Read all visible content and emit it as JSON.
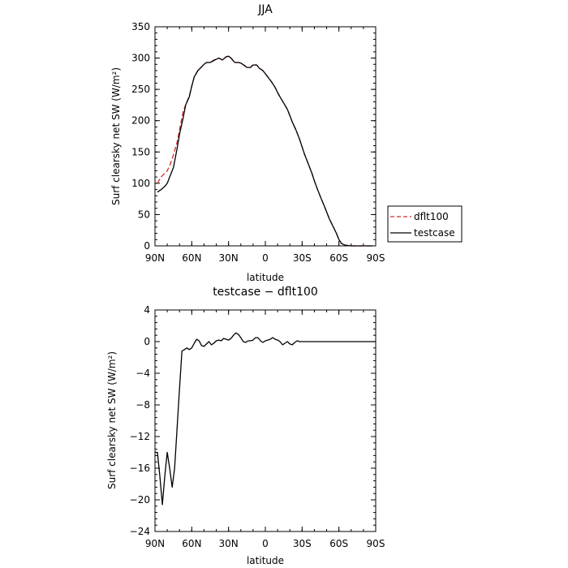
{
  "chart_data": [
    {
      "type": "line",
      "title": "JJA",
      "xlabel": "latitude",
      "ylabel": "Surf clearsky net SW (W/m²)",
      "xlim": [
        90,
        -90
      ],
      "ylim": [
        0,
        350
      ],
      "x_ticks": [
        90,
        60,
        30,
        0,
        -30,
        -60,
        -90
      ],
      "x_tick_labels": [
        "90N",
        "60N",
        "30N",
        "0",
        "30S",
        "60S",
        "90S"
      ],
      "y_ticks": [
        0,
        50,
        100,
        150,
        200,
        250,
        300,
        350
      ],
      "y_tick_labels": [
        "0",
        "50",
        "100",
        "150",
        "200",
        "250",
        "300",
        "350"
      ],
      "legend": {
        "placement": "right-outside",
        "entries": [
          {
            "name": "dflt100",
            "color": "#d62728",
            "dash": "dashed"
          },
          {
            "name": "testcase",
            "color": "#000000",
            "dash": "solid"
          }
        ]
      },
      "series": [
        {
          "name": "dflt100",
          "color": "#d62728",
          "dash": "dashed",
          "x": [
            88,
            85,
            82,
            80,
            78,
            75,
            72,
            70,
            67,
            65,
            62,
            60,
            58,
            55,
            52,
            50,
            48,
            45,
            42,
            40,
            38,
            35,
            32,
            30,
            28,
            25,
            22,
            20,
            17,
            15,
            12,
            10,
            7,
            5,
            2,
            0,
            -2,
            -5,
            -8,
            -10,
            -12,
            -15,
            -18,
            -20,
            -22,
            -25,
            -28,
            -30,
            -32,
            -35,
            -38,
            -40,
            -42,
            -45,
            -48,
            -50,
            -52,
            -55,
            -58,
            -60,
            -62,
            -65,
            -68,
            -70,
            -75,
            -80,
            -85,
            -88
          ],
          "y": [
            100,
            110,
            116,
            120,
            128,
            145,
            165,
            185,
            215,
            225,
            240,
            255,
            270,
            280,
            286,
            290,
            293,
            293,
            297,
            298,
            300,
            297,
            302,
            303,
            300,
            293,
            293,
            292,
            288,
            285,
            285,
            290,
            289,
            284,
            280,
            275,
            270,
            262,
            253,
            245,
            238,
            228,
            218,
            208,
            198,
            185,
            170,
            158,
            146,
            131,
            116,
            104,
            93,
            78,
            64,
            54,
            44,
            32,
            20,
            10,
            4,
            1,
            0.5,
            0,
            0,
            0,
            0,
            0
          ]
        },
        {
          "name": "testcase",
          "color": "#000000",
          "dash": "solid",
          "x": [
            88,
            85,
            82,
            80,
            78,
            75,
            72,
            70,
            67,
            65,
            62,
            60,
            58,
            55,
            52,
            50,
            48,
            45,
            42,
            40,
            38,
            35,
            32,
            30,
            28,
            25,
            22,
            20,
            17,
            15,
            12,
            10,
            7,
            5,
            2,
            0,
            -2,
            -5,
            -8,
            -10,
            -12,
            -15,
            -18,
            -20,
            -22,
            -25,
            -28,
            -30,
            -32,
            -35,
            -38,
            -40,
            -42,
            -45,
            -48,
            -50,
            -52,
            -55,
            -58,
            -60,
            -62,
            -65,
            -68,
            -70,
            -75,
            -80,
            -85,
            -88
          ],
          "y": [
            86,
            90,
            95,
            100,
            110,
            125,
            155,
            178,
            205,
            225,
            238,
            255,
            270,
            280,
            286,
            290,
            293,
            293,
            296,
            298,
            300,
            297,
            302,
            303,
            300,
            293,
            293,
            292,
            288,
            285,
            285,
            289,
            289,
            284,
            280,
            275,
            270,
            262,
            253,
            245,
            238,
            228,
            218,
            208,
            198,
            185,
            170,
            158,
            146,
            131,
            116,
            104,
            93,
            78,
            64,
            54,
            44,
            32,
            20,
            10,
            4,
            1,
            0.5,
            0,
            0,
            0,
            0,
            0
          ]
        }
      ]
    },
    {
      "type": "line",
      "title": "testcase − dflt100",
      "xlabel": "latitude",
      "ylabel": "Surf clearsky net SW (W/m²)",
      "xlim": [
        90,
        -90
      ],
      "ylim": [
        -24,
        4
      ],
      "x_ticks": [
        90,
        60,
        30,
        0,
        -30,
        -60,
        -90
      ],
      "x_tick_labels": [
        "90N",
        "60N",
        "30N",
        "0",
        "30S",
        "60S",
        "90S"
      ],
      "y_ticks": [
        4,
        0,
        -4,
        -8,
        -12,
        -16,
        -20,
        -24
      ],
      "y_tick_labels": [
        "4",
        "0",
        "−4",
        "−8",
        "−12",
        "−16",
        "−20",
        "−24"
      ],
      "series": [
        {
          "name": "testcase - dflt100",
          "color": "#000000",
          "dash": "solid",
          "x": [
            90,
            88,
            86,
            84,
            82,
            80,
            78,
            76,
            74,
            72,
            70,
            68,
            66,
            64,
            62,
            60,
            58,
            56,
            54,
            52,
            50,
            48,
            46,
            44,
            42,
            40,
            38,
            36,
            34,
            32,
            30,
            28,
            26,
            24,
            22,
            20,
            18,
            16,
            14,
            12,
            10,
            8,
            6,
            4,
            2,
            0,
            -2,
            -4,
            -6,
            -8,
            -10,
            -12,
            -14,
            -16,
            -18,
            -20,
            -22,
            -24,
            -26,
            -28,
            -30,
            -32,
            -34,
            -36,
            -38,
            -40,
            -42,
            -44,
            -46,
            -48,
            -50,
            -55,
            -60,
            -70,
            -80,
            -90
          ],
          "y": [
            -14,
            -14,
            -17,
            -20.6,
            -17,
            -14,
            -16,
            -18.4,
            -16,
            -11,
            -6,
            -1.2,
            -1,
            -0.8,
            -1,
            -0.8,
            -0.2,
            0.3,
            0.1,
            -0.5,
            -0.6,
            -0.3,
            0,
            -0.4,
            -0.2,
            0.1,
            0.2,
            0.1,
            0.4,
            0.3,
            0.2,
            0.4,
            0.8,
            1.1,
            0.9,
            0.5,
            0,
            -0.1,
            0.1,
            0.1,
            0.2,
            0.5,
            0.5,
            0.1,
            -0.1,
            0.1,
            0.2,
            0.3,
            0.5,
            0.3,
            0.2,
            0,
            -0.4,
            -0.2,
            0,
            -0.3,
            -0.4,
            -0.1,
            0.1,
            0,
            0,
            0,
            0,
            0,
            0,
            0,
            0,
            0,
            0,
            0,
            0,
            0,
            0,
            0,
            0,
            0
          ]
        }
      ]
    }
  ]
}
